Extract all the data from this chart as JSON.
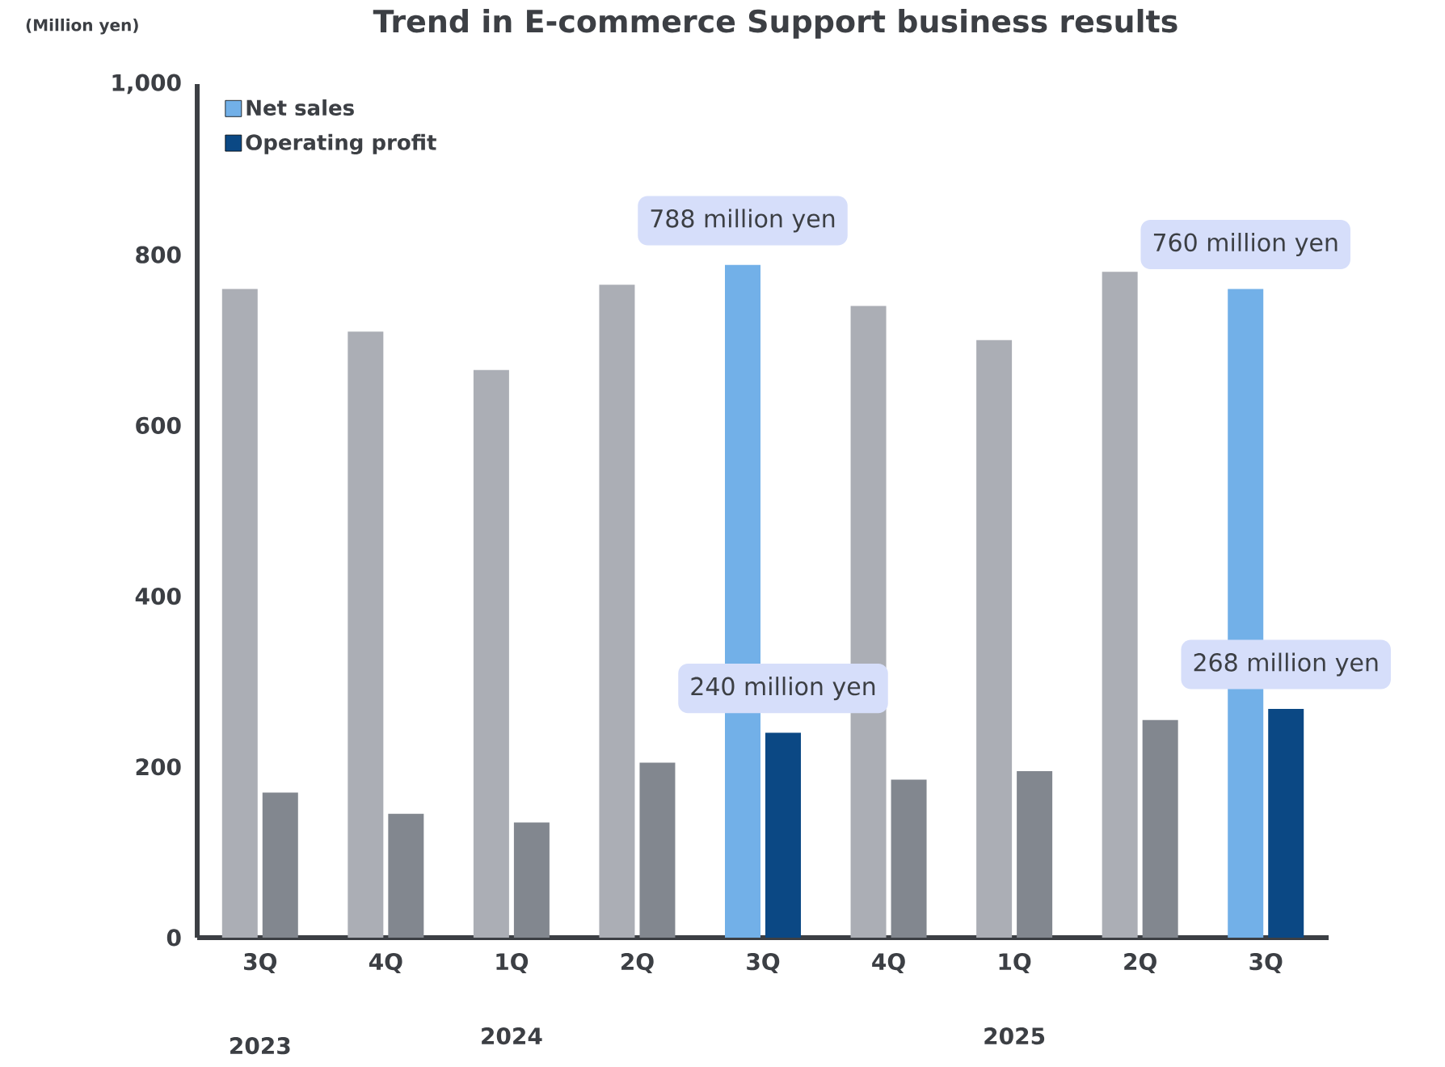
{
  "chart_data": {
    "type": "bar",
    "title": "Trend in E-commerce Support business results",
    "ylabel": "(Million yen)",
    "categories": [
      "3Q",
      "4Q",
      "1Q",
      "2Q",
      "3Q",
      "4Q",
      "1Q",
      "2Q",
      "3Q"
    ],
    "series": [
      {
        "name": "Net sales",
        "color": "#72b0e8",
        "colors": [
          "#abaeb5",
          "#abaeb5",
          "#abaeb5",
          "#abaeb5",
          "#72b0e8",
          "#abaeb5",
          "#abaeb5",
          "#abaeb5",
          "#72b0e8"
        ],
        "values": [
          760,
          710,
          665,
          765,
          788,
          740,
          700,
          780,
          760
        ],
        "value_labels": [
          null,
          null,
          null,
          null,
          "788 million yen",
          null,
          null,
          null,
          "760 million yen"
        ]
      },
      {
        "name": "Operating profit",
        "color": "#0b4884",
        "colors": [
          "#82878f",
          "#82878f",
          "#82878f",
          "#82878f",
          "#0b4884",
          "#82878f",
          "#82878f",
          "#82878f",
          "#0b4884"
        ],
        "values": [
          170,
          145,
          135,
          205,
          240,
          185,
          195,
          255,
          268
        ],
        "value_labels": [
          null,
          null,
          null,
          null,
          "240 million yen",
          null,
          null,
          null,
          "268 million yen"
        ]
      }
    ],
    "ylim": [
      0,
      1000
    ],
    "yticks": [
      0,
      200,
      400,
      600,
      800,
      {
        "value": 1000,
        "label": "1,000"
      }
    ],
    "legend": "top left",
    "annotations": [
      "2023",
      "2024",
      "2025"
    ]
  }
}
